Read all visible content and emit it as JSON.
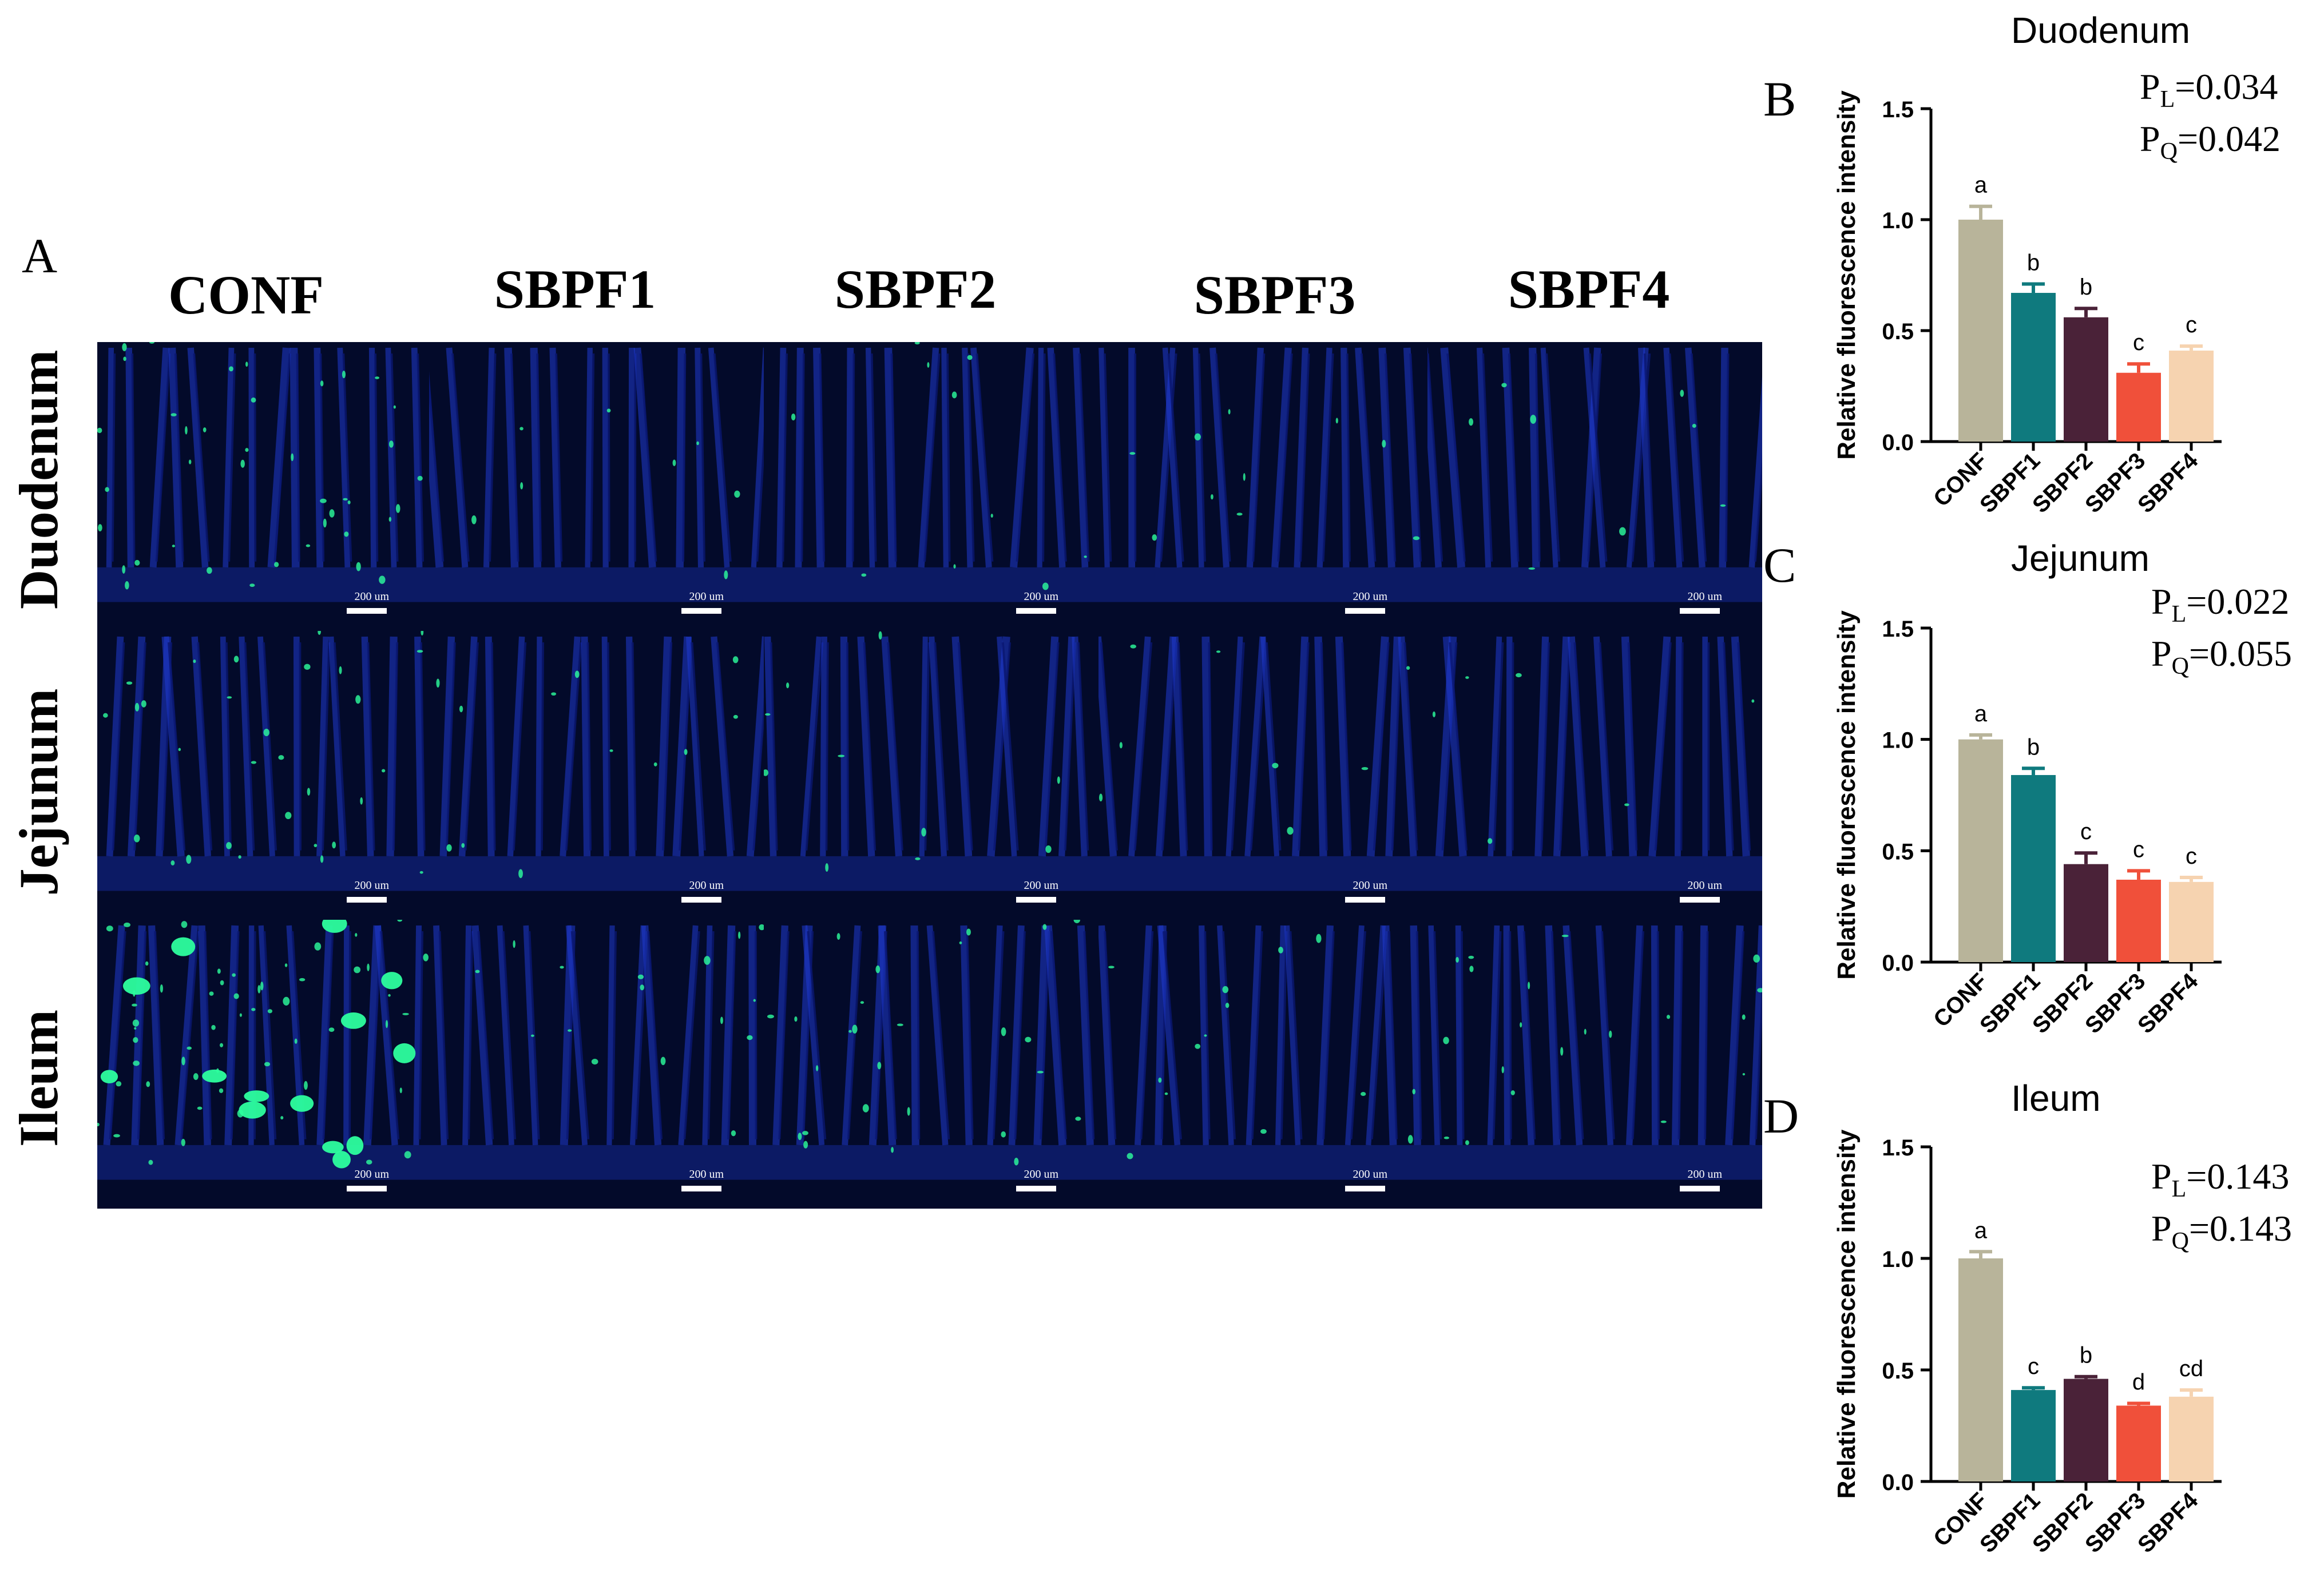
{
  "panel_labels": {
    "A": "A",
    "B": "B",
    "C": "C",
    "D": "D"
  },
  "micrographs": {
    "columns": [
      "CONF",
      "SBPF1",
      "SBPF2",
      "SBPF3",
      "SBPF4"
    ],
    "rows": [
      "Duodenum",
      "Jejunum",
      "Ileum"
    ],
    "scale_label": "200 um",
    "colors": {
      "background": "#030a2a",
      "nuclei": "#1f3ad0",
      "signal": "#2dff9e"
    }
  },
  "chart_data": [
    {
      "type": "bar",
      "title": "Duodenum",
      "categories": [
        "CONF",
        "SBPF1",
        "SBPF2",
        "SBPF3",
        "SBPF4"
      ],
      "values": [
        1.0,
        0.67,
        0.56,
        0.31,
        0.41
      ],
      "errors": [
        0.06,
        0.04,
        0.04,
        0.04,
        0.02
      ],
      "letters": [
        "a",
        "b",
        "b",
        "c",
        "c"
      ],
      "ylabel": "Relative fluorescence intensity",
      "ylim": [
        0,
        1.5
      ],
      "yticks": [
        "0.0",
        "0.5",
        "1.0",
        "1.5"
      ],
      "p_linear": "=0.034",
      "p_quadratic": "=0.042"
    },
    {
      "type": "bar",
      "title": "Jejunum",
      "categories": [
        "CONF",
        "SBPF1",
        "SBPF2",
        "SBPF3",
        "SBPF4"
      ],
      "values": [
        1.0,
        0.84,
        0.44,
        0.37,
        0.36
      ],
      "errors": [
        0.02,
        0.03,
        0.05,
        0.04,
        0.02
      ],
      "letters": [
        "a",
        "b",
        "c",
        "c",
        "c"
      ],
      "ylabel": "Relative fluorescence intensity",
      "ylim": [
        0,
        1.5
      ],
      "yticks": [
        "0.0",
        "0.5",
        "1.0",
        "1.5"
      ],
      "p_linear": "=0.022",
      "p_quadratic": "=0.055"
    },
    {
      "type": "bar",
      "title": "Ileum",
      "categories": [
        "CONF",
        "SBPF1",
        "SBPF2",
        "SBPF3",
        "SBPF4"
      ],
      "values": [
        1.0,
        0.41,
        0.46,
        0.34,
        0.38
      ],
      "errors": [
        0.03,
        0.01,
        0.01,
        0.01,
        0.03
      ],
      "letters": [
        "a",
        "c",
        "b",
        "d",
        "cd"
      ],
      "ylabel": "Relative fluorescence intensity",
      "ylim": [
        0,
        1.5
      ],
      "yticks": [
        "0.0",
        "0.5",
        "1.0",
        "1.5"
      ],
      "p_linear": "=0.143",
      "p_quadratic": "=0.143"
    }
  ],
  "p_symbol": {
    "letter": "P",
    "linear_sub": "L",
    "quadratic_sub": "Q"
  },
  "bar_colors": [
    "#b8b49a",
    "#0f7a7e",
    "#4a2238",
    "#f0503a",
    "#f6d3b0"
  ]
}
